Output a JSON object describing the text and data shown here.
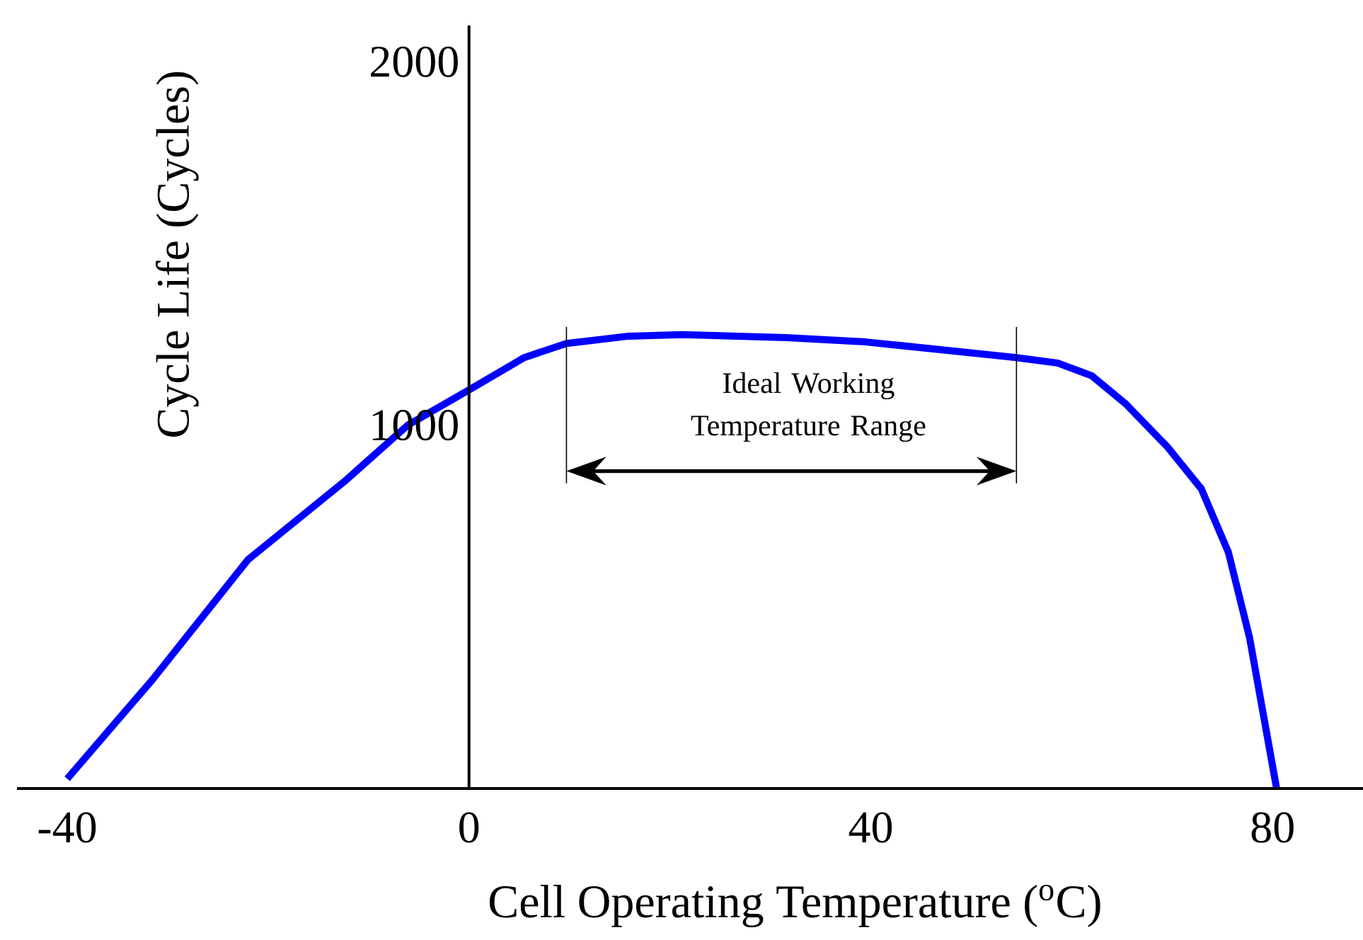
{
  "chart_data": {
    "type": "line",
    "xlabel": "Cell Operating Temperature ($^{o}$C)",
    "ylabel": "Cycle Life (Cycles)",
    "x": [
      -40,
      -31.5,
      -22,
      -12.4,
      -6.1,
      0,
      5.5,
      9.7,
      15.9,
      21.2,
      31.6,
      39.5,
      47.6,
      54.5,
      58.6,
      62,
      65.4,
      69.5,
      72.9,
      75.6,
      77.7,
      80.4
    ],
    "series": [
      {
        "color": "#0000ff",
        "values": [
          27,
          300,
          630,
          845,
          1000,
          1097,
          1186,
          1225,
          1245,
          1249,
          1241,
          1229,
          1206,
          1186,
          1171,
          1136,
          1058,
          941,
          825,
          650,
          416,
          0
        ]
      }
    ],
    "xlim": [
      -45,
      89
    ],
    "ylim": [
      0,
      2100
    ],
    "xticks": [
      -40,
      0,
      40,
      80
    ],
    "yticks": [
      1000,
      2000
    ],
    "ref_lines": [
      {
        "axis": "x",
        "value": 9.7
      },
      {
        "axis": "x",
        "value": 54.5
      }
    ],
    "annotations": [
      "Ideal Working Temperature Range"
    ],
    "marker": "none",
    "line_style": "solid"
  }
}
